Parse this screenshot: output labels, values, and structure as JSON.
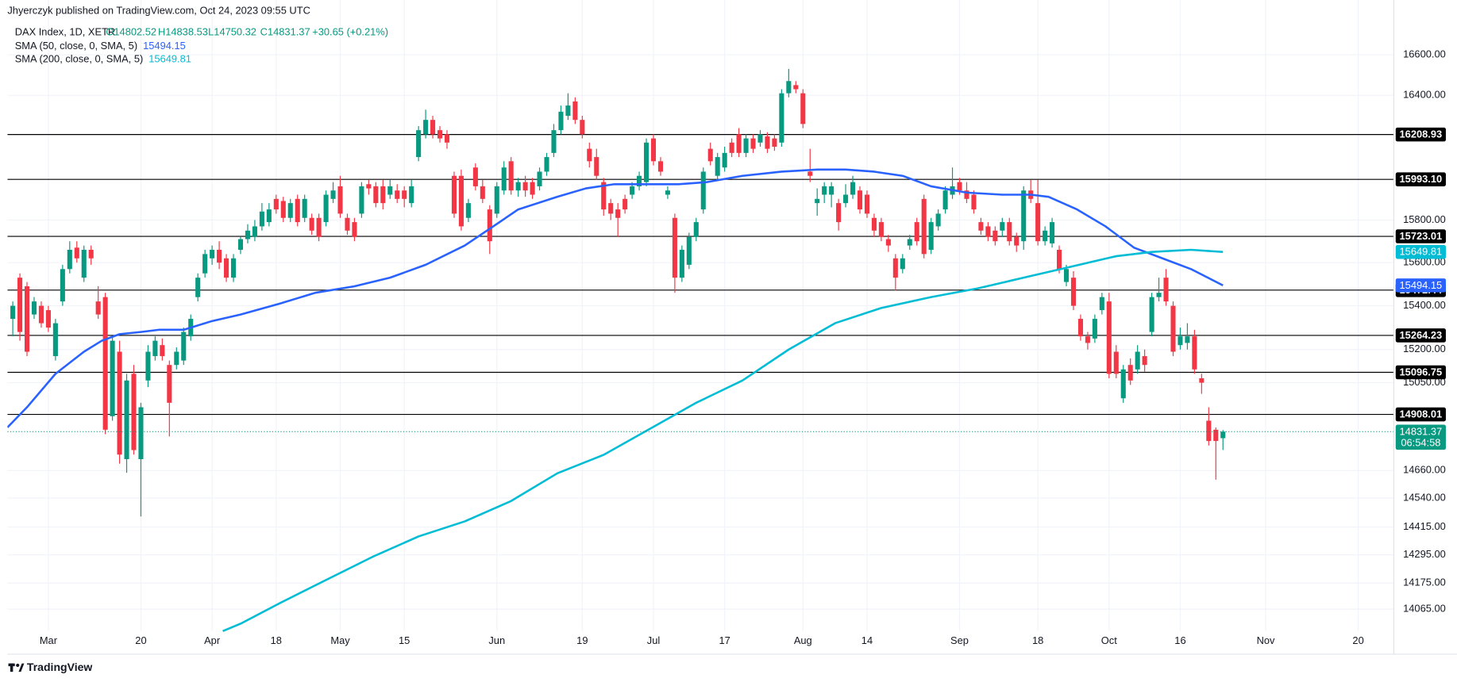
{
  "header": {
    "publisher": "Jhyerczyk published on TradingView.com, Oct 24, 2023 09:55 UTC"
  },
  "footer": {
    "brand": "TradingView"
  },
  "chart_data": {
    "type": "candlestick",
    "legend": {
      "symbol": "DAX Index, 1D, XETR",
      "open": "O14802.52",
      "high": "H14838.53",
      "low": "L14750.32",
      "close": "C14831.37",
      "change": "+30.65 (+0.21%)"
    },
    "up_color": "#089981",
    "down_color": "#f23645",
    "open": [
      15340,
      15530,
      15490,
      15360,
      15400,
      15380,
      15170,
      15420,
      15570,
      15670,
      15530,
      15660,
      15420,
      15440,
      14900,
      15190,
      14710,
      15090,
      14710,
      15060,
      15170,
      15220,
      15130,
      15130,
      15150,
      15260,
      15440,
      15550,
      15620,
      15660,
      15620,
      15530,
      15660,
      15710,
      15720,
      15770,
      15790,
      15900,
      15890,
      15810,
      15900,
      15810,
      15810,
      15810,
      15790,
      15900,
      15960,
      15810,
      15790,
      15830,
      15970,
      15960,
      15960,
      15920,
      15940,
      15940,
      15880,
      16100,
      16210,
      16280,
      16230,
      16210,
      16010,
      16010,
      15810,
      16050,
      15960,
      15850,
      15830,
      15940,
      16080,
      15940,
      15980,
      15980,
      15960,
      16030,
      16120,
      16230,
      16300,
      16370,
      16280,
      16140,
      16100,
      15980,
      15880,
      15850,
      15900,
      15920,
      15960,
      15980,
      16190,
      16080,
      15920,
      15810,
      15530,
      15590,
      15720,
      15850,
      16140,
      16010,
      16050,
      16170,
      16210,
      16120,
      16190,
      16170,
      16200,
      16190,
      16170,
      16410,
      16450,
      16410,
      16030,
      15880,
      15920,
      15920,
      15880,
      15880,
      15920,
      15940,
      15920,
      15810,
      15790,
      15710,
      15620,
      15570,
      15680,
      15790,
      15900,
      15660,
      15770,
      15850,
      15920,
      15980,
      15940,
      15920,
      15790,
      15770,
      15750,
      15750,
      15790,
      15720,
      15700,
      15940,
      15880,
      15700,
      15690,
      15660,
      15510,
      15530,
      15340,
      15260,
      15250,
      15380,
      15420,
      15190,
      14980,
      15130,
      15110,
      15170,
      15280,
      15440,
      15530,
      15400,
      15220,
      15230,
      15260,
      15070,
      14880,
      14840,
      14802.52
    ],
    "high": [
      15420,
      15550,
      15510,
      15440,
      15420,
      15400,
      15340,
      15590,
      15700,
      15700,
      15680,
      15680,
      15490,
      15460,
      15260,
      15240,
      15090,
      15130,
      14960,
      15220,
      15260,
      15250,
      15150,
      15210,
      15300,
      15360,
      15550,
      15660,
      15680,
      15700,
      15640,
      15640,
      15720,
      15780,
      15800,
      15880,
      15880,
      15920,
      15910,
      15900,
      15920,
      15920,
      15830,
      15830,
      15940,
      15980,
      16010,
      15830,
      15810,
      15980,
      15990,
      15980,
      15990,
      15990,
      15970,
      15960,
      15990,
      16250,
      16330,
      16300,
      16250,
      16230,
      16030,
      16040,
      15900,
      16070,
      15990,
      15870,
      15980,
      16080,
      16100,
      16000,
      16010,
      16000,
      16050,
      16120,
      16260,
      16350,
      16410,
      16390,
      16300,
      16170,
      16140,
      16000,
      15900,
      15880,
      15920,
      15980,
      16030,
      16190,
      16210,
      16100,
      15960,
      15830,
      15680,
      15740,
      15810,
      16050,
      16170,
      16120,
      16150,
      16190,
      16240,
      16210,
      16210,
      16230,
      16220,
      16210,
      16430,
      16530,
      16470,
      16430,
      16140,
      15950,
      15980,
      15980,
      15900,
      15970,
      16010,
      15960,
      15940,
      15830,
      15810,
      15730,
      15640,
      15640,
      15730,
      15810,
      15920,
      15810,
      15850,
      15960,
      16050,
      16000,
      15980,
      15940,
      15810,
      15790,
      15770,
      15810,
      15810,
      15740,
      15960,
      15990,
      15990,
      15770,
      15810,
      15680,
      15590,
      15560,
      15360,
      15280,
      15360,
      15460,
      15460,
      15220,
      15130,
      15160,
      15220,
      15200,
      15460,
      15530,
      15570,
      15420,
      15300,
      15320,
      15290,
      15090,
      14940,
      14850,
      14838.53
    ],
    "low": [
      15260,
      15240,
      15170,
      15340,
      15300,
      15280,
      15150,
      15400,
      15550,
      15600,
      15510,
      15590,
      15340,
      14820,
      14880,
      14690,
      14650,
      14730,
      14460,
      15030,
      15150,
      15150,
      14810,
      15110,
      15130,
      15240,
      15420,
      15530,
      15590,
      15570,
      15510,
      15510,
      15640,
      15690,
      15700,
      15750,
      15770,
      15830,
      15790,
      15790,
      15770,
      15790,
      15730,
      15700,
      15770,
      15880,
      15810,
      15730,
      15700,
      15810,
      15920,
      15860,
      15850,
      15900,
      15880,
      15860,
      15860,
      16080,
      16190,
      16190,
      16170,
      16140,
      15810,
      15750,
      15790,
      15940,
      15880,
      15640,
      15810,
      15920,
      15920,
      15910,
      15910,
      15900,
      15940,
      16010,
      16100,
      16210,
      16280,
      16260,
      16190,
      16050,
      15990,
      15820,
      15800,
      15720,
      15830,
      15900,
      15940,
      15960,
      16060,
      16010,
      15900,
      15460,
      15510,
      15570,
      15700,
      15830,
      16060,
      15990,
      16030,
      16100,
      16100,
      16100,
      16120,
      16150,
      16120,
      16130,
      16150,
      16390,
      16410,
      16240,
      15980,
      15820,
      15880,
      15860,
      15750,
      15860,
      15900,
      15830,
      15810,
      15720,
      15700,
      15650,
      15470,
      15550,
      15660,
      15680,
      15620,
      15640,
      15750,
      15830,
      15900,
      15920,
      15880,
      15830,
      15730,
      15700,
      15680,
      15720,
      15680,
      15650,
      15660,
      15880,
      15680,
      15680,
      15670,
      15550,
      15490,
      15380,
      15240,
      15200,
      15230,
      15360,
      15070,
      15070,
      14960,
      15040,
      15090,
      15100,
      15260,
      15420,
      15400,
      15170,
      15200,
      15200,
      15090,
      15000,
      14770,
      14620,
      14750.32
    ],
    "close": [
      15400,
      15280,
      15190,
      15420,
      15320,
      15300,
      15320,
      15570,
      15660,
      15620,
      15660,
      15620,
      15360,
      14840,
      15240,
      14730,
      15060,
      14750,
      14940,
      15190,
      15240,
      15170,
      14960,
      15190,
      15280,
      15340,
      15530,
      15640,
      15660,
      15600,
      15530,
      15620,
      15710,
      15750,
      15770,
      15840,
      15850,
      15850,
      15810,
      15880,
      15790,
      15900,
      15750,
      15720,
      15920,
      15940,
      15830,
      15750,
      15720,
      15960,
      15950,
      15880,
      15880,
      15960,
      15900,
      15900,
      15960,
      16230,
      16280,
      16210,
      16190,
      16170,
      15830,
      15770,
      15880,
      15960,
      15900,
      15700,
      15960,
      16050,
      15940,
      15980,
      15940,
      15920,
      16030,
      16100,
      16230,
      16320,
      16350,
      16280,
      16210,
      16080,
      16010,
      15850,
      15830,
      15810,
      15850,
      15960,
      16010,
      16170,
      16080,
      16030,
      15940,
      15530,
      15660,
      15720,
      15790,
      16030,
      16080,
      16100,
      16120,
      16120,
      16120,
      16190,
      16140,
      16210,
      16140,
      16150,
      16410,
      16470,
      16430,
      16260,
      16010,
      15900,
      15960,
      15960,
      15790,
      15920,
      15980,
      15850,
      15830,
      15750,
      15720,
      15680,
      15530,
      15620,
      15710,
      15700,
      15640,
      15790,
      15830,
      15940,
      15960,
      15940,
      15900,
      15850,
      15750,
      15720,
      15700,
      15790,
      15700,
      15680,
      15940,
      15900,
      15700,
      15750,
      15790,
      15570,
      15570,
      15400,
      15260,
      15230,
      15340,
      15440,
      15090,
      15090,
      15110,
      15060,
      15190,
      15130,
      15440,
      15460,
      15420,
      15190,
      15260,
      15260,
      15110,
      15050,
      14790,
      14790,
      14831.37
    ],
    "countdown": "06:54:58",
    "series": [
      {
        "name": "SMA (50, close, 0, SMA, 5)",
        "color": "#2962ff",
        "x": [
          -0.75,
          2,
          6,
          10,
          12.5,
          15,
          18,
          20.5,
          24,
          28,
          32,
          37.5,
          42.5,
          48,
          53,
          58,
          63.5,
          67.5,
          71,
          76.5,
          80.5,
          84.5,
          89.5,
          93.5,
          97.5,
          102.5,
          108,
          113,
          117,
          121,
          125,
          129,
          134,
          139,
          143,
          145.5,
          149.5,
          153.5,
          157.5,
          161.5,
          165.5,
          170
        ],
        "values": [
          14850,
          14940,
          15090,
          15190,
          15240,
          15270,
          15280,
          15290,
          15290,
          15330,
          15360,
          15410,
          15460,
          15490,
          15530,
          15590,
          15680,
          15770,
          15850,
          15910,
          15950,
          15970,
          15970,
          15970,
          15980,
          16010,
          16030,
          16040,
          16040,
          16030,
          16010,
          15960,
          15930,
          15920,
          15920,
          15910,
          15850,
          15770,
          15670,
          15620,
          15570,
          15494.15
        ]
      },
      {
        "name": "SMA (200, close, 0, SMA, 5)",
        "color": "#00bcd4",
        "x": [
          29.5,
          32,
          37.5,
          44,
          50.5,
          57,
          63.5,
          70,
          76.5,
          83,
          89.5,
          96,
          102.5,
          109,
          115.5,
          122,
          129,
          135.5,
          142,
          148.5,
          155,
          160,
          165.5,
          170
        ],
        "values": [
          13973,
          14004,
          14090,
          14188,
          14286,
          14374,
          14439,
          14527,
          14648,
          14729,
          14844,
          14960,
          15060,
          15200,
          15320,
          15390,
          15440,
          15480,
          15530,
          15580,
          15630,
          15650,
          15660,
          15649.81
        ]
      }
    ],
    "levels": [
      16208.93,
      {
        "value": 15993.1,
        "label": "15993.10"
      },
      15723.01,
      15472.44,
      15264.23,
      15096.75,
      14908.01
    ],
    "level_color": "#000000",
    "xlim": [
      -0.75,
      194
    ],
    "xticks": [
      {
        "value": 5,
        "label": "Mar"
      },
      {
        "value": 18,
        "label": "20"
      },
      {
        "value": 28,
        "label": "Apr"
      },
      {
        "value": 37,
        "label": "18"
      },
      {
        "value": 46,
        "label": "May"
      },
      {
        "value": 55,
        "label": "15"
      },
      {
        "value": 68,
        "label": "Jun"
      },
      {
        "value": 80,
        "label": "19"
      },
      {
        "value": 90,
        "label": "Jul"
      },
      {
        "value": 100,
        "label": "17"
      },
      {
        "value": 111,
        "label": "Aug"
      },
      {
        "value": 120,
        "label": "14"
      },
      {
        "value": 133,
        "label": "Sep"
      },
      {
        "value": 144,
        "label": "18"
      },
      {
        "value": 154,
        "label": "Oct"
      },
      {
        "value": 164,
        "label": "16"
      },
      {
        "value": 176,
        "label": "Nov"
      },
      {
        "value": 189,
        "label": "20"
      }
    ],
    "ylim": [
      13877,
      16874
    ],
    "yticks": [
      {
        "value": 16600,
        "label": "16600.00"
      },
      {
        "value": 16400,
        "label": "16400.00"
      },
      {
        "value": 15800,
        "label": "15800.00"
      },
      {
        "value": 15600,
        "label": "15600.00"
      },
      {
        "value": 15400,
        "label": "15400.00"
      },
      {
        "value": 15200,
        "label": "15200.00"
      },
      {
        "value": 15050,
        "label": "15050.00"
      },
      {
        "value": 14660,
        "label": "14660.00"
      },
      {
        "value": 14540,
        "label": "14540.00"
      },
      {
        "value": 14415,
        "label": "14415.00"
      },
      {
        "value": 14295,
        "label": "14295.00"
      },
      {
        "value": 14175,
        "label": "14175.00"
      },
      {
        "value": 14065,
        "label": "14065.00"
      }
    ],
    "log_scale": true,
    "grid": true
  }
}
